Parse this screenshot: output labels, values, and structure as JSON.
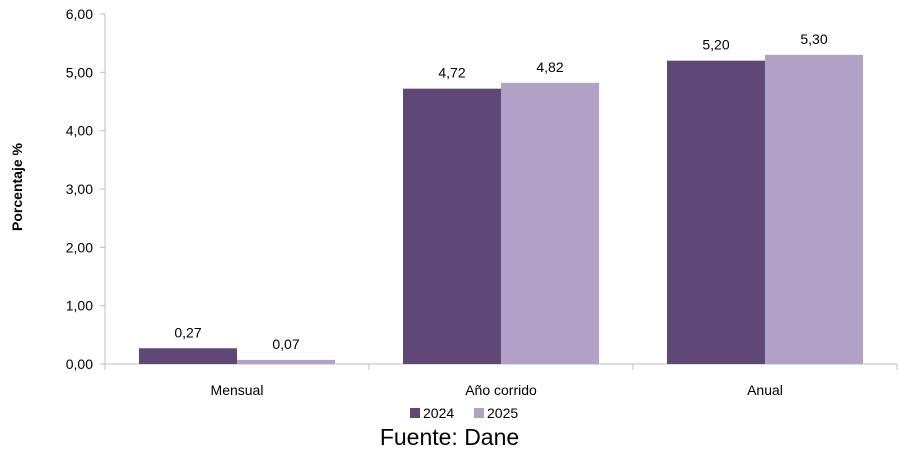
{
  "chart_data": {
    "type": "bar",
    "ylabel": "Porcentaje %",
    "ylim": [
      0,
      6
    ],
    "ytick_step": 1,
    "ytick_labels": [
      "0,00",
      "1,00",
      "2,00",
      "3,00",
      "4,00",
      "5,00",
      "6,00"
    ],
    "categories": [
      "Mensual",
      "Año corrido",
      "Anual"
    ],
    "series": [
      {
        "name": "2024",
        "values": [
          0.27,
          4.72,
          5.2
        ],
        "labels": [
          "0,27",
          "4,72",
          "5,20"
        ],
        "color": "#5f4777"
      },
      {
        "name": "2025",
        "values": [
          0.07,
          4.82,
          5.3
        ],
        "labels": [
          "0,07",
          "4,82",
          "5,30"
        ],
        "color": "#b1a1c7"
      }
    ],
    "legend_position": "bottom",
    "grid": false
  },
  "source": "Fuente: Dane"
}
